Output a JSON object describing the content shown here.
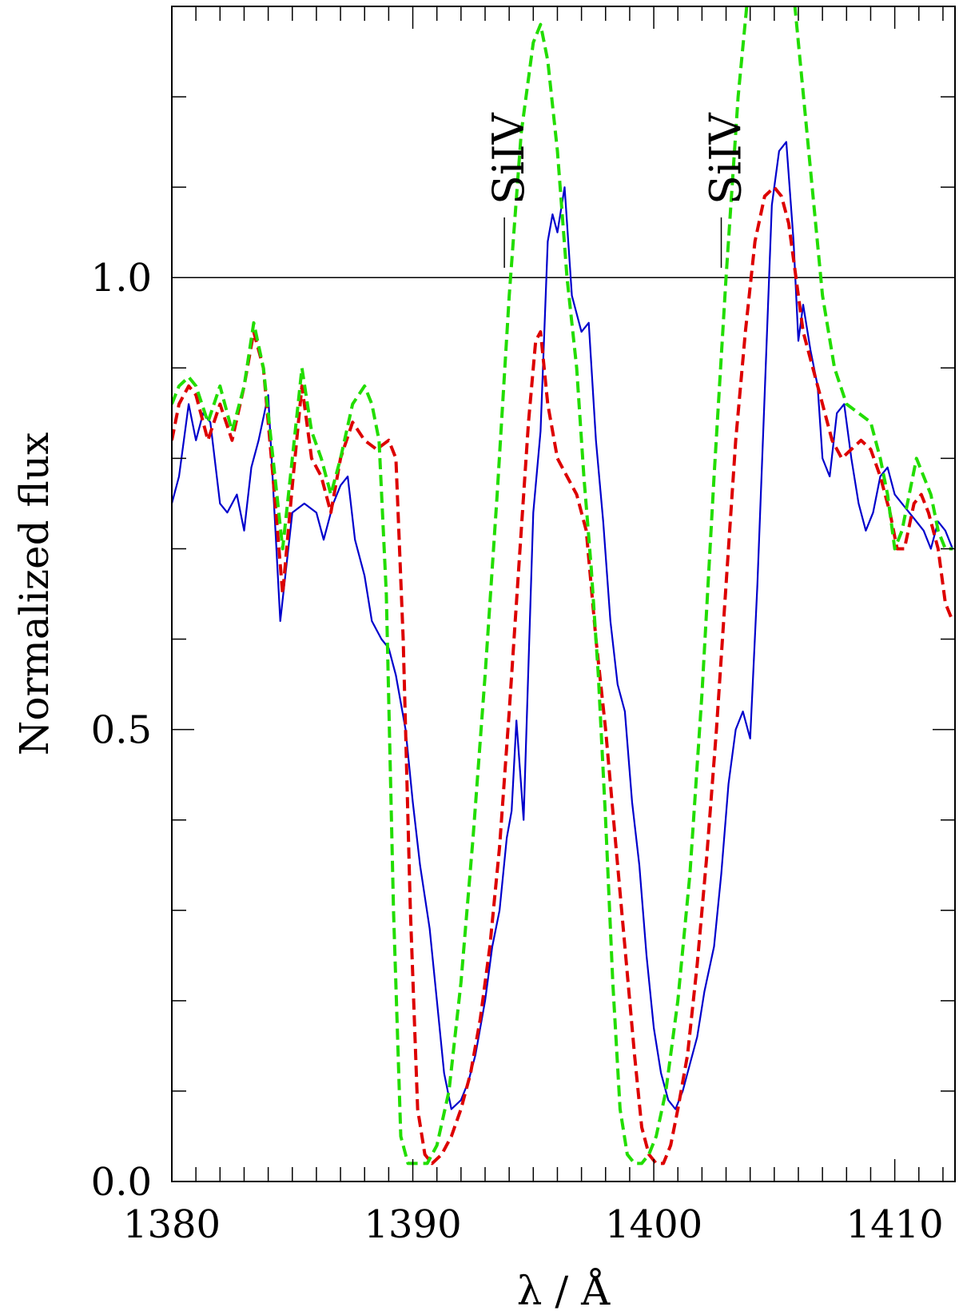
{
  "chart_data": {
    "type": "line",
    "xlabel": "λ / Å",
    "ylabel": "Normalized flux",
    "xlim": [
      1380,
      1412.5
    ],
    "ylim": [
      0,
      1.3
    ],
    "xticks": [
      1380,
      1390,
      1400,
      1410
    ],
    "xtick_labels": [
      "1380",
      "1390",
      "1400",
      "1410"
    ],
    "yticks": [
      0.0,
      0.5,
      1.0
    ],
    "ytick_labels": [
      "0.0",
      "0.5",
      "1.0"
    ],
    "reference_line": 1.0,
    "line_markers": [
      {
        "label": "SiIV",
        "x": 1393.8
      },
      {
        "label": "SiIV",
        "x": 1402.8
      }
    ],
    "series": [
      {
        "style": "solid",
        "color": "#0000cc",
        "x": [
          1380.0,
          1380.3,
          1380.7,
          1381.0,
          1381.3,
          1381.6,
          1382.0,
          1382.3,
          1382.7,
          1383.0,
          1383.3,
          1383.6,
          1384.0,
          1384.5,
          1385.0,
          1385.5,
          1386.0,
          1386.3,
          1386.7,
          1387.0,
          1387.3,
          1387.6,
          1388.0,
          1388.3,
          1388.7,
          1389.0,
          1389.3,
          1389.7,
          1390.0,
          1390.3,
          1390.7,
          1391.0,
          1391.3,
          1391.6,
          1392.0,
          1392.3,
          1392.6,
          1393.0,
          1393.3,
          1393.6,
          1393.9,
          1394.1,
          1394.3,
          1394.6,
          1395.0,
          1395.3,
          1395.6,
          1395.8,
          1396.0,
          1396.3,
          1396.6,
          1397.0,
          1397.3,
          1397.6,
          1397.9,
          1398.2,
          1398.5,
          1398.8,
          1399.1,
          1399.4,
          1399.7,
          1400.0,
          1400.3,
          1400.6,
          1400.9,
          1401.2,
          1401.5,
          1401.8,
          1402.1,
          1402.5,
          1402.8,
          1403.1,
          1403.4,
          1403.7,
          1404.0,
          1404.3,
          1404.6,
          1404.9,
          1405.2,
          1405.5,
          1405.8,
          1406.0,
          1406.2,
          1406.5,
          1406.8,
          1407.0,
          1407.3,
          1407.6,
          1407.9,
          1408.2,
          1408.5,
          1408.8,
          1409.1,
          1409.4,
          1409.7,
          1410.0,
          1410.3,
          1410.6,
          1410.9,
          1411.2,
          1411.5,
          1411.8,
          1412.1,
          1412.4
        ],
        "y": [
          0.75,
          0.78,
          0.86,
          0.82,
          0.85,
          0.84,
          0.75,
          0.74,
          0.76,
          0.72,
          0.79,
          0.82,
          0.87,
          0.62,
          0.74,
          0.75,
          0.74,
          0.71,
          0.75,
          0.77,
          0.78,
          0.71,
          0.67,
          0.62,
          0.6,
          0.59,
          0.56,
          0.5,
          0.42,
          0.35,
          0.28,
          0.2,
          0.12,
          0.08,
          0.09,
          0.11,
          0.14,
          0.2,
          0.26,
          0.3,
          0.38,
          0.41,
          0.51,
          0.4,
          0.74,
          0.83,
          1.04,
          1.07,
          1.05,
          1.1,
          0.98,
          0.94,
          0.95,
          0.82,
          0.73,
          0.62,
          0.55,
          0.52,
          0.42,
          0.35,
          0.25,
          0.17,
          0.12,
          0.09,
          0.08,
          0.1,
          0.13,
          0.16,
          0.21,
          0.26,
          0.34,
          0.44,
          0.5,
          0.52,
          0.49,
          0.66,
          0.87,
          1.08,
          1.14,
          1.15,
          1.04,
          0.93,
          0.97,
          0.92,
          0.88,
          0.8,
          0.78,
          0.85,
          0.86,
          0.8,
          0.75,
          0.72,
          0.74,
          0.78,
          0.79,
          0.76,
          0.75,
          0.74,
          0.73,
          0.72,
          0.7,
          0.73,
          0.72,
          0.7
        ]
      },
      {
        "style": "dashed",
        "color": "#dd0000",
        "x": [
          1380.0,
          1380.3,
          1380.7,
          1381.0,
          1381.5,
          1382.0,
          1382.5,
          1383.0,
          1383.4,
          1383.8,
          1384.2,
          1384.6,
          1385.0,
          1385.4,
          1385.8,
          1386.2,
          1386.6,
          1387.0,
          1387.5,
          1388.0,
          1388.5,
          1389.0,
          1389.3,
          1389.6,
          1389.9,
          1390.2,
          1390.5,
          1390.8,
          1391.2,
          1391.6,
          1392.0,
          1392.4,
          1392.8,
          1393.2,
          1393.6,
          1394.0,
          1394.4,
          1394.8,
          1395.1,
          1395.3,
          1395.6,
          1396.0,
          1396.4,
          1396.8,
          1397.2,
          1397.6,
          1398.0,
          1398.4,
          1398.8,
          1399.2,
          1399.5,
          1399.8,
          1400.1,
          1400.4,
          1400.7,
          1401.0,
          1401.4,
          1401.8,
          1402.2,
          1402.6,
          1403.0,
          1403.4,
          1403.8,
          1404.2,
          1404.6,
          1405.0,
          1405.3,
          1405.6,
          1405.9,
          1406.2,
          1406.6,
          1407.0,
          1407.4,
          1407.8,
          1408.2,
          1408.6,
          1409.0,
          1409.4,
          1409.8,
          1410.1,
          1410.4,
          1410.8,
          1411.1,
          1411.4,
          1411.8,
          1412.1,
          1412.4
        ],
        "y": [
          0.82,
          0.86,
          0.88,
          0.87,
          0.82,
          0.86,
          0.82,
          0.88,
          0.94,
          0.9,
          0.78,
          0.65,
          0.77,
          0.88,
          0.8,
          0.78,
          0.74,
          0.8,
          0.84,
          0.82,
          0.81,
          0.82,
          0.8,
          0.6,
          0.3,
          0.08,
          0.03,
          0.02,
          0.03,
          0.05,
          0.08,
          0.12,
          0.18,
          0.26,
          0.37,
          0.52,
          0.68,
          0.84,
          0.93,
          0.94,
          0.86,
          0.8,
          0.78,
          0.76,
          0.72,
          0.6,
          0.5,
          0.38,
          0.26,
          0.14,
          0.06,
          0.03,
          0.02,
          0.02,
          0.04,
          0.08,
          0.14,
          0.24,
          0.36,
          0.5,
          0.66,
          0.82,
          0.94,
          1.04,
          1.09,
          1.1,
          1.09,
          1.06,
          1.0,
          0.94,
          0.9,
          0.86,
          0.82,
          0.8,
          0.81,
          0.82,
          0.81,
          0.78,
          0.74,
          0.7,
          0.7,
          0.75,
          0.76,
          0.74,
          0.7,
          0.64,
          0.62
        ]
      },
      {
        "style": "dashed",
        "color": "#22dd00",
        "x": [
          1380.0,
          1380.3,
          1380.7,
          1381.0,
          1381.5,
          1382.0,
          1382.5,
          1383.0,
          1383.4,
          1383.8,
          1384.2,
          1384.6,
          1385.0,
          1385.4,
          1385.8,
          1386.2,
          1386.6,
          1387.0,
          1387.5,
          1388.0,
          1388.3,
          1388.6,
          1388.9,
          1389.2,
          1389.5,
          1389.8,
          1390.2,
          1390.6,
          1391.0,
          1391.5,
          1392.0,
          1392.5,
          1393.0,
          1393.5,
          1394.0,
          1394.5,
          1395.0,
          1395.3,
          1395.6,
          1396.0,
          1396.4,
          1396.8,
          1397.1,
          1397.4,
          1397.7,
          1398.0,
          1398.3,
          1398.6,
          1398.9,
          1399.2,
          1399.5,
          1399.8,
          1400.1,
          1400.5,
          1401.0,
          1401.5,
          1402.0,
          1402.5,
          1403.0,
          1403.5,
          1404.0,
          1404.5,
          1405.0,
          1405.5,
          1406.0,
          1406.5,
          1407.0,
          1407.5,
          1408.0,
          1408.5,
          1409.0,
          1409.4,
          1409.7,
          1410.0,
          1410.3,
          1410.6,
          1410.9,
          1411.2,
          1411.5,
          1411.8,
          1412.1,
          1412.4
        ],
        "y": [
          0.86,
          0.88,
          0.89,
          0.88,
          0.84,
          0.88,
          0.83,
          0.88,
          0.95,
          0.9,
          0.8,
          0.7,
          0.8,
          0.9,
          0.83,
          0.8,
          0.76,
          0.8,
          0.86,
          0.88,
          0.86,
          0.82,
          0.65,
          0.3,
          0.05,
          0.02,
          0.02,
          0.02,
          0.04,
          0.1,
          0.22,
          0.38,
          0.56,
          0.76,
          0.98,
          1.16,
          1.26,
          1.28,
          1.24,
          1.14,
          1.0,
          0.9,
          0.78,
          0.68,
          0.56,
          0.4,
          0.22,
          0.08,
          0.03,
          0.02,
          0.02,
          0.03,
          0.05,
          0.1,
          0.2,
          0.34,
          0.54,
          0.78,
          1.0,
          1.2,
          1.34,
          1.4,
          1.44,
          1.4,
          1.26,
          1.12,
          0.98,
          0.9,
          0.86,
          0.85,
          0.84,
          0.8,
          0.76,
          0.7,
          0.72,
          0.76,
          0.8,
          0.78,
          0.76,
          0.72,
          0.7,
          0.7
        ]
      }
    ]
  }
}
